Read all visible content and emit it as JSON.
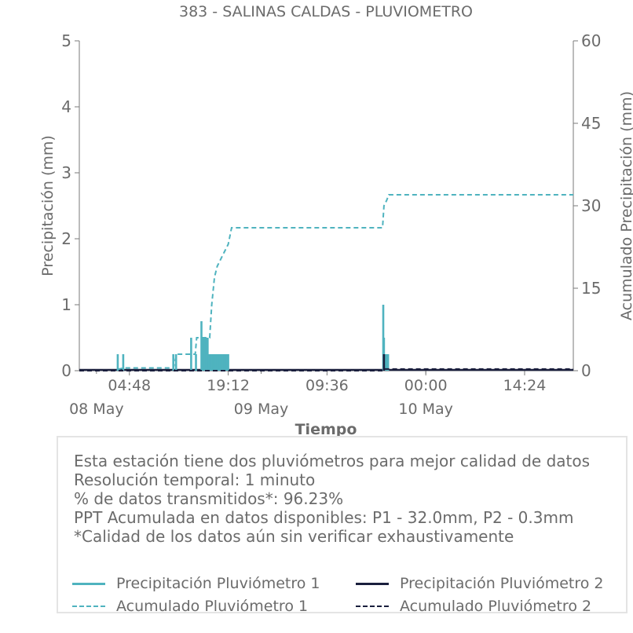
{
  "chart_data": {
    "type": "line",
    "title": "383 - SALINAS CALDAS - PLUVIOMETRO",
    "xlabel": "Tiempo",
    "ylabel_left": "Precipitación (mm)",
    "ylabel_right": "Acumulado Precipitación (mm)",
    "ylim_left": [
      0,
      5
    ],
    "ylim_right": [
      0,
      60
    ],
    "yticks_left": [
      "0",
      "1",
      "2",
      "3",
      "4",
      "5"
    ],
    "yticks_right": [
      "0",
      "15",
      "30",
      "45",
      "60"
    ],
    "x_range_hours": [
      -2.5,
      69.5
    ],
    "xticks": [
      {
        "hour": 4.8,
        "time": "04:48",
        "date": "08 May"
      },
      {
        "hour": 19.2,
        "time": "19:12",
        "date": ""
      },
      {
        "hour": 33.6,
        "time": "09:36",
        "date": "09 May"
      },
      {
        "hour": 48.0,
        "time": "00:00",
        "date": "10 May"
      },
      {
        "hour": 62.4,
        "time": "14:24",
        "date": ""
      }
    ],
    "date_labels": [
      {
        "hour": 0.0,
        "label": "08 May"
      },
      {
        "hour": 24.0,
        "label": "09 May"
      },
      {
        "hour": 48.0,
        "label": "10 May"
      }
    ],
    "series": [
      {
        "name": "Precipitación Pluviómetro 1",
        "color": "#4fb3bf",
        "style": "solid",
        "axis": "left",
        "bars": [
          [
            3.1,
            0.25
          ],
          [
            3.9,
            0.25
          ],
          [
            11.2,
            0.25
          ],
          [
            11.6,
            0.25
          ],
          [
            13.8,
            0.5
          ],
          [
            14.5,
            0.25
          ],
          [
            15.3,
            0.75
          ],
          [
            15.4,
            0.5
          ],
          [
            15.6,
            0.5
          ],
          [
            15.8,
            0.5
          ],
          [
            16.0,
            0.5
          ],
          [
            16.2,
            0.5
          ],
          [
            16.4,
            0.25
          ],
          [
            16.6,
            0.25
          ],
          [
            16.8,
            0.25
          ],
          [
            17.0,
            0.25
          ],
          [
            17.2,
            0.25
          ],
          [
            17.4,
            0.25
          ],
          [
            17.6,
            0.25
          ],
          [
            17.8,
            0.25
          ],
          [
            18.0,
            0.25
          ],
          [
            18.2,
            0.25
          ],
          [
            18.4,
            0.25
          ],
          [
            18.6,
            0.25
          ],
          [
            18.8,
            0.25
          ],
          [
            19.0,
            0.25
          ],
          [
            19.2,
            0.25
          ],
          [
            41.8,
            1.0
          ],
          [
            41.9,
            0.5
          ],
          [
            42.1,
            0.25
          ],
          [
            42.3,
            0.25
          ],
          [
            42.5,
            0.25
          ]
        ]
      },
      {
        "name": "Precipitación Pluviómetro 2",
        "color": "#1a1f3d",
        "style": "solid",
        "axis": "left",
        "bars": [
          [
            41.9,
            0.25
          ]
        ]
      },
      {
        "name": "Acumulado Pluviómetro 1",
        "color": "#4fb3bf",
        "style": "dashed",
        "axis": "right",
        "points": [
          [
            -2.5,
            0
          ],
          [
            3.0,
            0
          ],
          [
            3.1,
            0.25
          ],
          [
            4.0,
            0.5
          ],
          [
            11.2,
            0.5
          ],
          [
            11.7,
            3.0
          ],
          [
            14.4,
            3.0
          ],
          [
            14.6,
            6.0
          ],
          [
            16.5,
            6.0
          ],
          [
            16.8,
            12.0
          ],
          [
            17.2,
            17.0
          ],
          [
            17.6,
            19.0
          ],
          [
            18.6,
            21.5
          ],
          [
            19.2,
            23.0
          ],
          [
            19.7,
            26.0
          ],
          [
            41.7,
            26.0
          ],
          [
            41.9,
            30.0
          ],
          [
            42.3,
            31.0
          ],
          [
            42.6,
            32.0
          ],
          [
            69.5,
            32.0
          ]
        ]
      },
      {
        "name": "Acumulado Pluviómetro 2",
        "color": "#1a1f3d",
        "style": "dashed",
        "axis": "right",
        "points": [
          [
            -2.5,
            0
          ],
          [
            41.8,
            0
          ],
          [
            41.9,
            0.3
          ],
          [
            69.5,
            0.3
          ]
        ]
      }
    ],
    "baseline_series_color": "#1a1f3d"
  },
  "info": {
    "lines": [
      "Esta estación tiene dos pluviómetros para mejor calidad de datos",
      "Resolución temporal: 1 minuto",
      "% de datos transmitidos*: 96.23%",
      "PPT Acumulada en datos disponibles: P1 - 32.0mm, P2 - 0.3mm",
      "*Calidad de los datos aún sin verificar exhaustivamente"
    ]
  },
  "legend": {
    "items": [
      {
        "label": "Precipitación Pluviómetro 1",
        "color": "#4fb3bf",
        "style": "solid"
      },
      {
        "label": "Precipitación Pluviómetro 2",
        "color": "#1a1f3d",
        "style": "solid"
      },
      {
        "label": "Acumulado Pluviómetro 1",
        "color": "#4fb3bf",
        "style": "dashed"
      },
      {
        "label": "Acumulado Pluviómetro 2",
        "color": "#1a1f3d",
        "style": "dashed"
      }
    ]
  }
}
